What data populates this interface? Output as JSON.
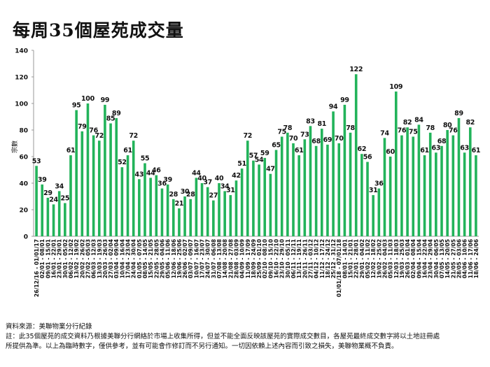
{
  "title": "每周35個屋苑成交量",
  "footer": {
    "source": "資料來源：美聯物業分行紀錄",
    "note1": "註：此35個屋苑的成交資料乃根據美聯分行網絡於市場上收集所得，但並不能全面反映該屋苑的實際成交數目，各屋苑最終成交數字將以土地註冊處",
    "note2": "所提供為準。以上為臨時數字，僅供參考，並有可能會作修訂而不另行通知。一切因依賴上述內容而引致之損失，美聯物業概不負責。"
  },
  "chart_data": {
    "type": "bar",
    "title": "每周35個屋苑成交量",
    "xlabel": "",
    "ylabel": "宗數",
    "ylim": [
      0,
      140
    ],
    "yticks": [
      0,
      20,
      40,
      60,
      80,
      100,
      120,
      140
    ],
    "grid": false,
    "color": "#22b35a",
    "categories": [
      "26/12/16 - 01/01/17",
      "02/01 - 08/01",
      "09/01 - 15/01",
      "16/01 - 22/01",
      "23/01 - 29/01",
      "30/01 - 05/02",
      "06/02 - 12/02",
      "13/02 - 19/02",
      "20/02 - 26/02",
      "27/02 - 05/03",
      "06/03 - 12/03",
      "13/03 - 19/03",
      "20/03 - 26/03",
      "27/03 - 02/04",
      "03/04 - 09/04",
      "10/04 - 16/04",
      "17/04 - 23/04",
      "24/04 - 30/04",
      "01/05 - 07/05",
      "08/05 - 14/05",
      "15/05 - 21/05",
      "22/05 - 28/05",
      "29/05 - 04/06",
      "05/06 - 11/06",
      "12/06 - 18/06",
      "19/06 - 25/06",
      "26/06 - 02/07",
      "03/07 - 09/07",
      "10/07 - 16/07",
      "17/07 - 23/07",
      "24/07 - 30/07",
      "31/07 - 06/08",
      "07/08 - 13/08",
      "14/08 - 20/08",
      "21/08 - 27/08",
      "28/08 - 03/09",
      "04/09 - 10/09",
      "11/09 - 17/09",
      "18/09 - 24/09",
      "25/09 - 01/10",
      "02/10 - 08/10",
      "09/10 - 15/10",
      "16/10 - 22/10",
      "23/10 - 29/10",
      "30/10 - 05/11",
      "06/11 - 12/11",
      "13/11 - 19/11",
      "20/11 - 26/11",
      "27/11 - 03/12",
      "04/12 - 10/12",
      "11/12 - 17/12",
      "18/12 - 24/12",
      "25/12 - 31/12",
      "01/01/18 - 07/01/18",
      "08/01 - 14/01",
      "15/01 - 21/01",
      "22/01 - 28/01",
      "29/01 - 04/02",
      "05/02 - 11/02",
      "12/02 - 18/02",
      "19/02 - 25/02",
      "26/02 - 04/03",
      "05/03 - 11/03",
      "12/03 - 18/03",
      "19/03 - 25/03",
      "26/03 - 01/04",
      "02/04 - 08/04",
      "09/04 - 15/04",
      "16/04 - 22/04",
      "23/04 - 29/04",
      "30/04 - 06/05",
      "07/05 - 13/05",
      "14/05 - 20/05",
      "21/05 - 27/05",
      "28/05 - 03/06",
      "04/06 - 10/06",
      "11/06 - 17/06",
      "18/06 - 24/06"
    ],
    "values": [
      53,
      39,
      29,
      24,
      34,
      25,
      61,
      95,
      79,
      100,
      76,
      72,
      99,
      85,
      89,
      52,
      61,
      72,
      43,
      55,
      44,
      46,
      36,
      39,
      28,
      21,
      30,
      28,
      44,
      40,
      37,
      27,
      40,
      34,
      31,
      42,
      51,
      72,
      57,
      54,
      59,
      47,
      65,
      75,
      78,
      70,
      61,
      73,
      83,
      68,
      81,
      69,
      94,
      70,
      99,
      78,
      122,
      62,
      56,
      31,
      36,
      74,
      60,
      109,
      76,
      82,
      75,
      84,
      61,
      78,
      63,
      68,
      80,
      76,
      89,
      63,
      82,
      61
    ]
  }
}
